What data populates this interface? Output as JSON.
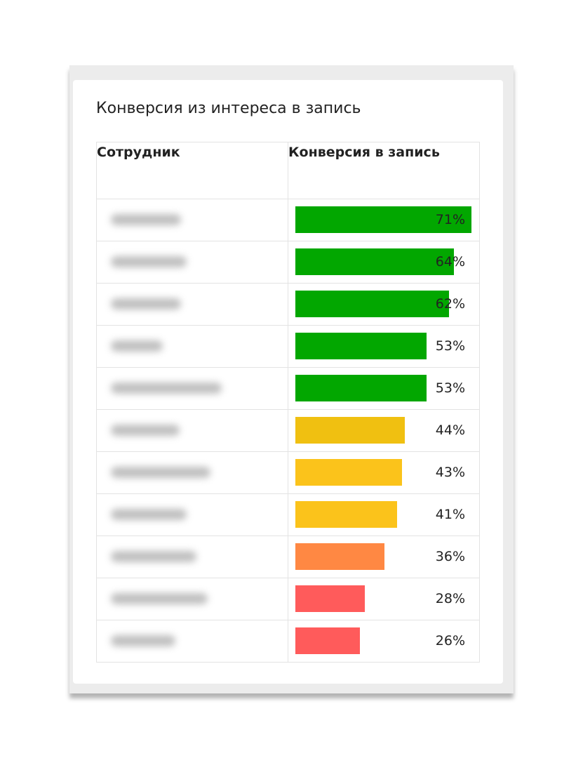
{
  "title": "Конверсия из интереса в запись",
  "chart_data": {
    "type": "bar",
    "orientation": "horizontal",
    "title": "Конверсия из интереса в запись",
    "columns": [
      "Сотрудник",
      "Конверсия в запись"
    ],
    "categories": [
      "",
      "",
      "",
      "",
      "",
      "",
      "",
      "",
      "",
      "",
      ""
    ],
    "values": [
      71,
      64,
      62,
      53,
      53,
      44,
      43,
      41,
      36,
      28,
      26
    ],
    "labels": [
      "71%",
      "64%",
      "62%",
      "53%",
      "53%",
      "44%",
      "43%",
      "41%",
      "36%",
      "28%",
      "26%"
    ],
    "colors": [
      "#02a700",
      "#02a700",
      "#02a700",
      "#02a700",
      "#02a700",
      "#f0c011",
      "#fbc31b",
      "#fbc31b",
      "#ff8843",
      "#ff5b5b",
      "#ff5b5b"
    ],
    "xlim": [
      0,
      71
    ],
    "names_blurred": true
  }
}
